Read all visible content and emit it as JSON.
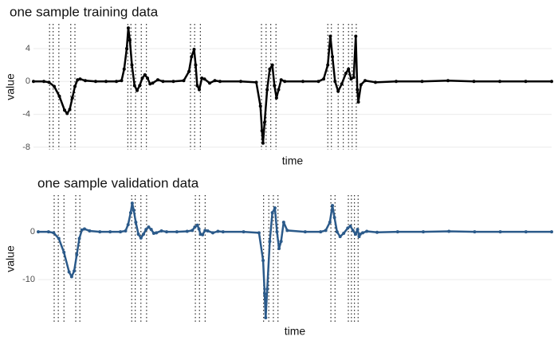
{
  "chart_data": [
    {
      "type": "scatter",
      "title": "one sample training data",
      "xlabel": "time",
      "ylabel": "value",
      "color": "#000000",
      "x": [
        0,
        2,
        3,
        4,
        5,
        6,
        6.5,
        7,
        7.5,
        8,
        8.5,
        9,
        10,
        12,
        14,
        16,
        17,
        17.5,
        18,
        18.3,
        18.6,
        19,
        19.5,
        20,
        20.5,
        21,
        21.5,
        22,
        22.5,
        23,
        24,
        25,
        27,
        29,
        30,
        30.5,
        31,
        31.3,
        31.6,
        32,
        32.5,
        33,
        34,
        35,
        36,
        40,
        43,
        43.8,
        44.1,
        44.3,
        44.6,
        45.1,
        45.6,
        46.1,
        46.5,
        46.9,
        47.3,
        47.8,
        48.5,
        52,
        55,
        56,
        56.8,
        57.3,
        57.7,
        58.2,
        58.8,
        59.5,
        60.3,
        60.8,
        61.3,
        61.8,
        62.2,
        62.5,
        62.7,
        63.2,
        64,
        66,
        70,
        75,
        80,
        85,
        90,
        95,
        100
      ],
      "values": [
        0,
        0,
        -0.1,
        -0.6,
        -1.8,
        -3.5,
        -3.9,
        -3.4,
        -2,
        -0.6,
        0.2,
        0.3,
        0.1,
        0,
        0,
        0,
        0.1,
        1.5,
        4,
        6.5,
        5,
        2,
        -0.5,
        -1.1,
        -0.5,
        0.4,
        0.8,
        0.4,
        -0.3,
        -0.2,
        0.2,
        0,
        0,
        0.1,
        1.2,
        3,
        3.9,
        2,
        -0.5,
        -1,
        0.4,
        0.3,
        -0.2,
        0.1,
        0,
        0,
        -0.1,
        -3,
        -6,
        -7.5,
        -5,
        -1,
        1.5,
        2,
        -0.5,
        -2,
        -1,
        0.2,
        0,
        0,
        0,
        0.3,
        2,
        5.5,
        3,
        0,
        -1.2,
        -0.3,
        1,
        1.5,
        0.3,
        0.5,
        5.5,
        -1,
        -2.5,
        -0.4,
        0.1,
        -0.1,
        0,
        0,
        0.1,
        0,
        0,
        0,
        0
      ],
      "vlines": [
        3.1,
        3.8,
        4.9,
        7.2,
        8.0,
        18.2,
        18.8,
        19.7,
        20.8,
        21.8,
        30.3,
        31.1,
        32.2,
        44,
        44.9,
        45.8,
        46.8,
        56.8,
        57.5,
        58.8,
        59.8,
        60.8,
        61.5,
        62.3
      ],
      "xlim": [
        0,
        100
      ],
      "ylim": [
        -8.3,
        7
      ],
      "yticks": [
        -8,
        -4,
        0,
        4
      ],
      "grid": true
    },
    {
      "type": "scatter",
      "title": "one sample validation data",
      "xlabel": "time",
      "ylabel": "value",
      "color": "#2b5a8a",
      "x": [
        0,
        2,
        3,
        4,
        5,
        6,
        6.5,
        7,
        7.5,
        8,
        8.5,
        9,
        10,
        12,
        14,
        16,
        17,
        17.5,
        18,
        18.3,
        18.6,
        19,
        19.5,
        20,
        20.5,
        21,
        21.5,
        22,
        22.5,
        23,
        24,
        25,
        27,
        29,
        30,
        30.5,
        31,
        31.3,
        31.6,
        32,
        32.5,
        33,
        34,
        35,
        36,
        40,
        43,
        43.8,
        44.1,
        44.3,
        44.6,
        45.1,
        45.6,
        46.1,
        46.5,
        46.9,
        47.3,
        47.8,
        48.5,
        52,
        55,
        56,
        56.8,
        57.3,
        57.7,
        58.2,
        58.8,
        59.5,
        60.3,
        60.8,
        61.3,
        61.8,
        62.2,
        62.5,
        62.7,
        63.2,
        64,
        66,
        70,
        75,
        80,
        85,
        90,
        95,
        100
      ],
      "values": [
        0,
        0,
        -0.2,
        -1.4,
        -4.3,
        -8.4,
        -9.4,
        -8.2,
        -4.8,
        -1.4,
        0.4,
        0.6,
        0.2,
        0,
        0,
        0,
        0.2,
        1.5,
        4,
        6,
        4.5,
        2,
        -0.5,
        -1.3,
        -0.5,
        0.5,
        1,
        0.5,
        -0.3,
        -0.2,
        0.2,
        0,
        0,
        0.1,
        0.3,
        1,
        1.4,
        0.6,
        -0.5,
        -0.6,
        0.3,
        0.2,
        -0.2,
        0.1,
        0,
        0,
        -0.2,
        -6,
        -13,
        -18,
        -12,
        -2,
        4,
        5,
        0,
        -3.5,
        -2,
        2,
        0.3,
        0,
        0,
        0.3,
        2,
        5.5,
        3,
        0,
        -1,
        -0.3,
        0.8,
        1.2,
        0.3,
        -0.5,
        0.5,
        -1,
        -0.5,
        -0.2,
        0.1,
        -0.1,
        0,
        0,
        0.1,
        0,
        0,
        0,
        0
      ],
      "vlines": [
        3.1,
        3.9,
        5.0,
        7.3,
        8.1,
        18.2,
        18.9,
        20,
        21.1,
        30.6,
        31.4,
        32.5,
        43.9,
        44.9,
        45.8,
        46.7,
        57,
        57.8,
        60.4,
        61,
        61.6,
        62.3
      ],
      "xlim": [
        0,
        100
      ],
      "ylim": [
        -19,
        7.7
      ],
      "yticks": [
        -10,
        0
      ],
      "grid": true
    }
  ]
}
